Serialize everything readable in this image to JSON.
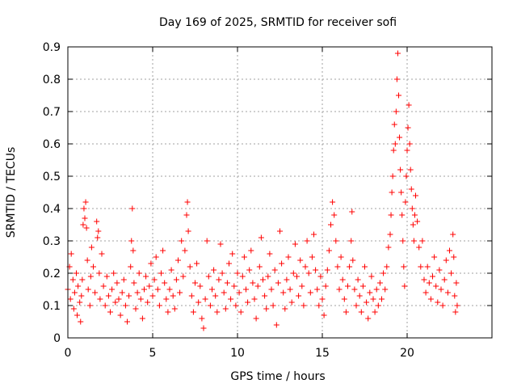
{
  "chart_data": {
    "type": "scatter",
    "title": "Day 169 of 2025, SRMTID for receiver sofi",
    "xlabel": "GPS time / hours",
    "ylabel": "SRMTID / TECUs",
    "xlim": [
      0,
      25
    ],
    "ylim": [
      0,
      0.9
    ],
    "x_ticks": [
      0,
      5,
      10,
      15,
      20
    ],
    "x_tick_labels": [
      "0",
      "5",
      "10",
      "15",
      "20"
    ],
    "y_ticks": [
      0,
      0.1,
      0.2,
      0.3,
      0.4,
      0.5,
      0.6,
      0.7,
      0.8,
      0.9
    ],
    "y_tick_labels": [
      "0",
      "0.1",
      "0.2",
      "0.3",
      "0.4",
      "0.5",
      "0.6",
      "0.7",
      "0.8",
      "0.9"
    ],
    "grid": true,
    "marker": "+",
    "series_color": "#ff0000",
    "series": [
      {
        "name": "SRMTID",
        "points": [
          [
            0.0,
            0.15
          ],
          [
            0.1,
            0.22
          ],
          [
            0.15,
            0.12
          ],
          [
            0.2,
            0.26
          ],
          [
            0.3,
            0.18
          ],
          [
            0.35,
            0.09
          ],
          [
            0.4,
            0.14
          ],
          [
            0.5,
            0.2
          ],
          [
            0.55,
            0.07
          ],
          [
            0.6,
            0.16
          ],
          [
            0.7,
            0.11
          ],
          [
            0.75,
            0.05
          ],
          [
            0.8,
            0.13
          ],
          [
            0.85,
            0.18
          ],
          [
            0.9,
            0.35
          ],
          [
            0.95,
            0.4
          ],
          [
            1.0,
            0.37
          ],
          [
            1.05,
            0.42
          ],
          [
            1.1,
            0.34
          ],
          [
            1.15,
            0.24
          ],
          [
            1.2,
            0.15
          ],
          [
            1.3,
            0.1
          ],
          [
            1.35,
            0.19
          ],
          [
            1.4,
            0.28
          ],
          [
            1.5,
            0.22
          ],
          [
            1.6,
            0.14
          ],
          [
            1.7,
            0.36
          ],
          [
            1.75,
            0.31
          ],
          [
            1.8,
            0.33
          ],
          [
            1.85,
            0.2
          ],
          [
            1.9,
            0.12
          ],
          [
            2.0,
            0.26
          ],
          [
            2.1,
            0.16
          ],
          [
            2.2,
            0.1
          ],
          [
            2.3,
            0.19
          ],
          [
            2.4,
            0.13
          ],
          [
            2.5,
            0.08
          ],
          [
            2.6,
            0.15
          ],
          [
            2.7,
            0.2
          ],
          [
            2.8,
            0.11
          ],
          [
            2.9,
            0.17
          ],
          [
            3.0,
            0.12
          ],
          [
            3.1,
            0.07
          ],
          [
            3.2,
            0.14
          ],
          [
            3.3,
            0.18
          ],
          [
            3.4,
            0.1
          ],
          [
            3.5,
            0.05
          ],
          [
            3.6,
            0.13
          ],
          [
            3.7,
            0.22
          ],
          [
            3.75,
            0.3
          ],
          [
            3.8,
            0.4
          ],
          [
            3.85,
            0.27
          ],
          [
            3.9,
            0.17
          ],
          [
            4.0,
            0.09
          ],
          [
            4.1,
            0.14
          ],
          [
            4.2,
            0.2
          ],
          [
            4.3,
            0.12
          ],
          [
            4.4,
            0.06
          ],
          [
            4.5,
            0.15
          ],
          [
            4.6,
            0.19
          ],
          [
            4.7,
            0.11
          ],
          [
            4.8,
            0.16
          ],
          [
            4.9,
            0.23
          ],
          [
            5.0,
            0.13
          ],
          [
            5.1,
            0.18
          ],
          [
            5.2,
            0.25
          ],
          [
            5.3,
            0.15
          ],
          [
            5.4,
            0.1
          ],
          [
            5.5,
            0.2
          ],
          [
            5.6,
            0.27
          ],
          [
            5.7,
            0.17
          ],
          [
            5.8,
            0.12
          ],
          [
            5.9,
            0.08
          ],
          [
            6.0,
            0.15
          ],
          [
            6.1,
            0.21
          ],
          [
            6.2,
            0.13
          ],
          [
            6.3,
            0.09
          ],
          [
            6.4,
            0.18
          ],
          [
            6.5,
            0.24
          ],
          [
            6.6,
            0.14
          ],
          [
            6.7,
            0.3
          ],
          [
            6.8,
            0.19
          ],
          [
            6.9,
            0.27
          ],
          [
            7.0,
            0.38
          ],
          [
            7.05,
            0.42
          ],
          [
            7.1,
            0.33
          ],
          [
            7.2,
            0.22
          ],
          [
            7.3,
            0.13
          ],
          [
            7.4,
            0.08
          ],
          [
            7.5,
            0.17
          ],
          [
            7.6,
            0.23
          ],
          [
            7.7,
            0.11
          ],
          [
            7.8,
            0.16
          ],
          [
            7.9,
            0.06
          ],
          [
            8.0,
            0.03
          ],
          [
            8.1,
            0.12
          ],
          [
            8.2,
            0.3
          ],
          [
            8.3,
            0.19
          ],
          [
            8.4,
            0.1
          ],
          [
            8.5,
            0.15
          ],
          [
            8.6,
            0.21
          ],
          [
            8.7,
            0.13
          ],
          [
            8.8,
            0.08
          ],
          [
            8.9,
            0.18
          ],
          [
            9.0,
            0.29
          ],
          [
            9.1,
            0.2
          ],
          [
            9.2,
            0.14
          ],
          [
            9.3,
            0.09
          ],
          [
            9.4,
            0.17
          ],
          [
            9.5,
            0.23
          ],
          [
            9.6,
            0.12
          ],
          [
            9.7,
            0.26
          ],
          [
            9.8,
            0.16
          ],
          [
            9.9,
            0.1
          ],
          [
            10.0,
            0.2
          ],
          [
            10.1,
            0.14
          ],
          [
            10.2,
            0.08
          ],
          [
            10.3,
            0.19
          ],
          [
            10.4,
            0.25
          ],
          [
            10.5,
            0.15
          ],
          [
            10.6,
            0.11
          ],
          [
            10.7,
            0.21
          ],
          [
            10.8,
            0.27
          ],
          [
            10.9,
            0.17
          ],
          [
            11.0,
            0.12
          ],
          [
            11.1,
            0.06
          ],
          [
            11.2,
            0.16
          ],
          [
            11.3,
            0.22
          ],
          [
            11.4,
            0.31
          ],
          [
            11.5,
            0.18
          ],
          [
            11.6,
            0.13
          ],
          [
            11.7,
            0.09
          ],
          [
            11.8,
            0.19
          ],
          [
            11.9,
            0.26
          ],
          [
            12.0,
            0.15
          ],
          [
            12.1,
            0.1
          ],
          [
            12.2,
            0.21
          ],
          [
            12.3,
            0.04
          ],
          [
            12.4,
            0.17
          ],
          [
            12.5,
            0.33
          ],
          [
            12.6,
            0.23
          ],
          [
            12.7,
            0.14
          ],
          [
            12.8,
            0.09
          ],
          [
            12.9,
            0.18
          ],
          [
            13.0,
            0.25
          ],
          [
            13.1,
            0.15
          ],
          [
            13.2,
            0.11
          ],
          [
            13.3,
            0.2
          ],
          [
            13.4,
            0.29
          ],
          [
            13.5,
            0.19
          ],
          [
            13.6,
            0.13
          ],
          [
            13.7,
            0.24
          ],
          [
            13.8,
            0.16
          ],
          [
            13.9,
            0.1
          ],
          [
            14.0,
            0.22
          ],
          [
            14.1,
            0.3
          ],
          [
            14.2,
            0.2
          ],
          [
            14.3,
            0.14
          ],
          [
            14.4,
            0.25
          ],
          [
            14.5,
            0.32
          ],
          [
            14.6,
            0.21
          ],
          [
            14.7,
            0.15
          ],
          [
            14.8,
            0.1
          ],
          [
            14.9,
            0.19
          ],
          [
            15.0,
            0.12
          ],
          [
            15.1,
            0.07
          ],
          [
            15.2,
            0.16
          ],
          [
            15.3,
            0.21
          ],
          [
            15.4,
            0.27
          ],
          [
            15.5,
            0.35
          ],
          [
            15.6,
            0.42
          ],
          [
            15.7,
            0.38
          ],
          [
            15.8,
            0.3
          ],
          [
            15.9,
            0.22
          ],
          [
            16.0,
            0.15
          ],
          [
            16.1,
            0.25
          ],
          [
            16.2,
            0.18
          ],
          [
            16.3,
            0.12
          ],
          [
            16.4,
            0.08
          ],
          [
            16.5,
            0.16
          ],
          [
            16.6,
            0.22
          ],
          [
            16.7,
            0.3
          ],
          [
            16.75,
            0.39
          ],
          [
            16.8,
            0.24
          ],
          [
            16.9,
            0.15
          ],
          [
            17.0,
            0.1
          ],
          [
            17.1,
            0.18
          ],
          [
            17.2,
            0.13
          ],
          [
            17.3,
            0.08
          ],
          [
            17.4,
            0.16
          ],
          [
            17.5,
            0.22
          ],
          [
            17.6,
            0.11
          ],
          [
            17.7,
            0.06
          ],
          [
            17.8,
            0.14
          ],
          [
            17.9,
            0.19
          ],
          [
            18.0,
            0.12
          ],
          [
            18.1,
            0.08
          ],
          [
            18.2,
            0.15
          ],
          [
            18.3,
            0.1
          ],
          [
            18.4,
            0.17
          ],
          [
            18.5,
            0.12
          ],
          [
            18.6,
            0.2
          ],
          [
            18.7,
            0.15
          ],
          [
            18.8,
            0.22
          ],
          [
            18.9,
            0.28
          ],
          [
            19.0,
            0.32
          ],
          [
            19.05,
            0.38
          ],
          [
            19.1,
            0.45
          ],
          [
            19.15,
            0.5
          ],
          [
            19.2,
            0.58
          ],
          [
            19.25,
            0.66
          ],
          [
            19.3,
            0.6
          ],
          [
            19.35,
            0.7
          ],
          [
            19.4,
            0.8
          ],
          [
            19.45,
            0.88
          ],
          [
            19.5,
            0.75
          ],
          [
            19.55,
            0.62
          ],
          [
            19.6,
            0.52
          ],
          [
            19.65,
            0.45
          ],
          [
            19.7,
            0.38
          ],
          [
            19.75,
            0.3
          ],
          [
            19.8,
            0.22
          ],
          [
            19.85,
            0.16
          ],
          [
            19.9,
            0.42
          ],
          [
            19.95,
            0.5
          ],
          [
            20.0,
            0.58
          ],
          [
            20.05,
            0.65
          ],
          [
            20.1,
            0.72
          ],
          [
            20.15,
            0.6
          ],
          [
            20.2,
            0.52
          ],
          [
            20.25,
            0.46
          ],
          [
            20.3,
            0.4
          ],
          [
            20.35,
            0.35
          ],
          [
            20.4,
            0.3
          ],
          [
            20.45,
            0.38
          ],
          [
            20.5,
            0.44
          ],
          [
            20.6,
            0.36
          ],
          [
            20.7,
            0.28
          ],
          [
            20.8,
            0.22
          ],
          [
            20.9,
            0.3
          ],
          [
            21.0,
            0.18
          ],
          [
            21.1,
            0.14
          ],
          [
            21.2,
            0.22
          ],
          [
            21.3,
            0.17
          ],
          [
            21.4,
            0.12
          ],
          [
            21.5,
            0.19
          ],
          [
            21.6,
            0.25
          ],
          [
            21.7,
            0.16
          ],
          [
            21.8,
            0.11
          ],
          [
            21.9,
            0.21
          ],
          [
            22.0,
            0.15
          ],
          [
            22.1,
            0.1
          ],
          [
            22.2,
            0.18
          ],
          [
            22.3,
            0.24
          ],
          [
            22.4,
            0.14
          ],
          [
            22.5,
            0.27
          ],
          [
            22.6,
            0.2
          ],
          [
            22.7,
            0.32
          ],
          [
            22.75,
            0.25
          ],
          [
            22.8,
            0.13
          ],
          [
            22.85,
            0.08
          ],
          [
            22.9,
            0.17
          ],
          [
            22.95,
            0.1
          ]
        ]
      }
    ]
  }
}
